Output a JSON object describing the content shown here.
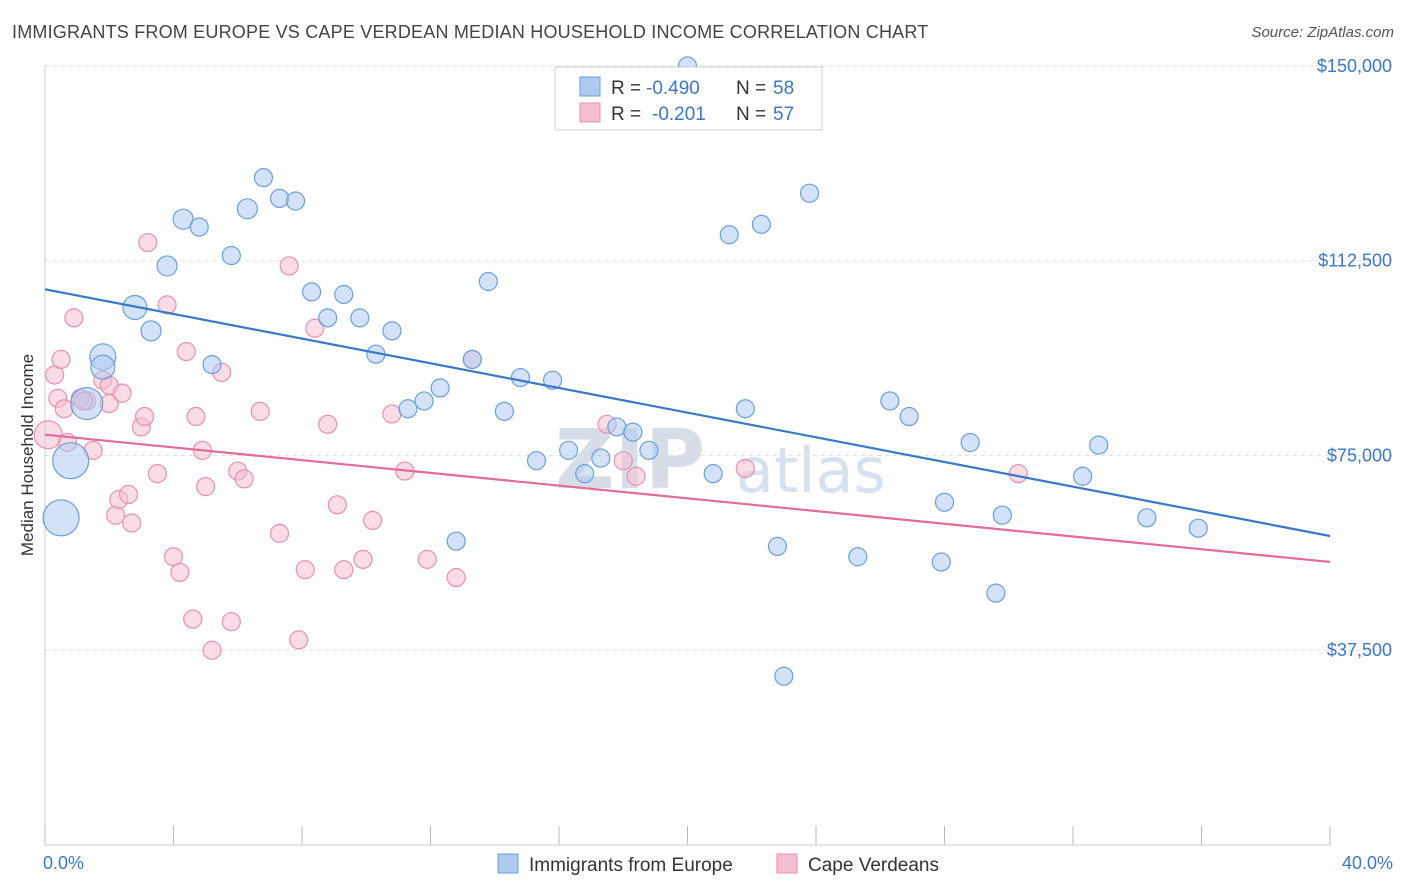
{
  "title": "IMMIGRANTS FROM EUROPE VS CAPE VERDEAN MEDIAN HOUSEHOLD INCOME CORRELATION CHART",
  "source": "Source: ZipAtlas.com",
  "watermark": {
    "zip": "ZIP",
    "atlas": "atlas"
  },
  "colors": {
    "blue": "#3b78c8",
    "blue_fill": "#aecbef",
    "pink": "#e36b97",
    "pink_fill": "#f5bfd2"
  },
  "legend_top": [
    {
      "r_label": "R =",
      "r_value": "-0.490",
      "n_label": "N =",
      "n_value": "58"
    },
    {
      "r_label": "R =",
      "r_value": "-0.201",
      "n_label": "N =",
      "n_value": "57"
    }
  ],
  "chart_data": {
    "type": "scatter",
    "title": "IMMIGRANTS FROM EUROPE VS CAPE VERDEAN MEDIAN HOUSEHOLD INCOME CORRELATION CHART",
    "xlabel": "",
    "ylabel": "Median Household Income",
    "xlim": [
      0,
      40
    ],
    "ylim": [
      0,
      155000
    ],
    "x_tick_labels": [
      "0.0%",
      "40.0%"
    ],
    "y_ticks": [
      37500,
      75000,
      112500,
      150000
    ],
    "y_tick_labels": [
      "$37,500",
      "$75,000",
      "$112,500",
      "$150,000"
    ],
    "grid": true,
    "legend_position": "top-center",
    "series": [
      {
        "name": "Immigrants from Europe",
        "color": "#3b78c8",
        "trend": {
          "x": [
            0,
            40
          ],
          "y": [
            107000,
            59500
          ]
        },
        "points": [
          [
            0.5,
            63000,
            18
          ],
          [
            0.8,
            74000,
            18
          ],
          [
            1.3,
            85000,
            16
          ],
          [
            1.8,
            94000,
            13
          ],
          [
            1.8,
            92000,
            12
          ],
          [
            2.8,
            103500,
            12
          ],
          [
            3.3,
            99000,
            10
          ],
          [
            3.8,
            111500,
            10
          ],
          [
            4.3,
            120500,
            10
          ],
          [
            4.8,
            119000,
            9
          ],
          [
            5.2,
            92500,
            9
          ],
          [
            5.8,
            113500,
            9
          ],
          [
            6.3,
            122500,
            10
          ],
          [
            6.8,
            128500,
            9
          ],
          [
            7.3,
            124500,
            9
          ],
          [
            7.8,
            124000,
            9
          ],
          [
            8.3,
            106500,
            9
          ],
          [
            8.8,
            101500,
            9
          ],
          [
            9.3,
            106000,
            9
          ],
          [
            9.8,
            101500,
            9
          ],
          [
            10.3,
            94500,
            9
          ],
          [
            10.8,
            99000,
            9
          ],
          [
            11.3,
            84000,
            9
          ],
          [
            11.8,
            85500,
            9
          ],
          [
            12.3,
            88000,
            9
          ],
          [
            12.8,
            58500,
            9
          ],
          [
            13.3,
            93500,
            9
          ],
          [
            13.8,
            108500,
            9
          ],
          [
            14.3,
            83500,
            9
          ],
          [
            14.8,
            90000,
            9
          ],
          [
            15.3,
            74000,
            9
          ],
          [
            15.8,
            89500,
            9
          ],
          [
            16.3,
            76000,
            9
          ],
          [
            16.8,
            71500,
            9
          ],
          [
            17.3,
            74500,
            9
          ],
          [
            17.8,
            80500,
            9
          ],
          [
            18.3,
            79500,
            9
          ],
          [
            18.8,
            76000,
            9
          ],
          [
            20.8,
            71500,
            9
          ],
          [
            21.3,
            117500,
            9
          ],
          [
            21.8,
            84000,
            9
          ],
          [
            22.3,
            119500,
            9
          ],
          [
            22.8,
            57500,
            9
          ],
          [
            23.0,
            32500,
            9
          ],
          [
            23.8,
            125500,
            9
          ],
          [
            25.3,
            55500,
            9
          ],
          [
            26.3,
            85500,
            9
          ],
          [
            26.9,
            82500,
            9
          ],
          [
            27.9,
            54500,
            9
          ],
          [
            28.0,
            66000,
            9
          ],
          [
            28.8,
            77500,
            9
          ],
          [
            29.6,
            48500,
            9
          ],
          [
            29.8,
            63500,
            9
          ],
          [
            32.3,
            71000,
            9
          ],
          [
            32.8,
            77000,
            9
          ],
          [
            34.3,
            63000,
            9
          ],
          [
            35.9,
            61000,
            9
          ],
          [
            20.0,
            150000,
            9
          ]
        ]
      },
      {
        "name": "Cape Verdeans",
        "color": "#e36b97",
        "trend": {
          "x": [
            0,
            40
          ],
          "y": [
            79000,
            54500
          ]
        },
        "points": [
          [
            0.1,
            79000,
            14
          ],
          [
            0.3,
            90500,
            9
          ],
          [
            0.4,
            86000,
            9
          ],
          [
            0.5,
            93500,
            9
          ],
          [
            0.6,
            84000,
            9
          ],
          [
            0.7,
            77500,
            9
          ],
          [
            0.9,
            101500,
            9
          ],
          [
            1.1,
            86000,
            9
          ],
          [
            1.3,
            85500,
            9
          ],
          [
            1.5,
            76000,
            9
          ],
          [
            1.8,
            89500,
            9
          ],
          [
            2.0,
            88500,
            9
          ],
          [
            2.0,
            85000,
            9
          ],
          [
            2.2,
            63500,
            9
          ],
          [
            2.3,
            66500,
            9
          ],
          [
            2.4,
            87000,
            9
          ],
          [
            2.6,
            67500,
            9
          ],
          [
            2.7,
            62000,
            9
          ],
          [
            3.0,
            80500,
            9
          ],
          [
            3.1,
            82500,
            9
          ],
          [
            3.2,
            116000,
            9
          ],
          [
            3.5,
            71500,
            9
          ],
          [
            3.8,
            104000,
            9
          ],
          [
            4.0,
            55500,
            9
          ],
          [
            4.2,
            52500,
            9
          ],
          [
            4.4,
            95000,
            9
          ],
          [
            4.6,
            43500,
            9
          ],
          [
            4.7,
            82500,
            9
          ],
          [
            4.9,
            76000,
            9
          ],
          [
            5.0,
            69000,
            9
          ],
          [
            5.2,
            37500,
            9
          ],
          [
            5.5,
            91000,
            9
          ],
          [
            5.8,
            43000,
            9
          ],
          [
            6.0,
            72000,
            9
          ],
          [
            6.2,
            70500,
            9
          ],
          [
            6.7,
            83500,
            9
          ],
          [
            7.3,
            60000,
            9
          ],
          [
            7.6,
            111500,
            9
          ],
          [
            7.9,
            39500,
            9
          ],
          [
            8.1,
            53000,
            9
          ],
          [
            8.4,
            99500,
            9
          ],
          [
            8.8,
            81000,
            9
          ],
          [
            9.1,
            65500,
            9
          ],
          [
            9.3,
            53000,
            9
          ],
          [
            9.9,
            55000,
            9
          ],
          [
            10.2,
            62500,
            9
          ],
          [
            10.8,
            83000,
            9
          ],
          [
            11.2,
            72000,
            9
          ],
          [
            11.9,
            55000,
            9
          ],
          [
            12.8,
            51500,
            9
          ],
          [
            13.3,
            93500,
            9
          ],
          [
            17.5,
            81000,
            9
          ],
          [
            18.0,
            74000,
            9
          ],
          [
            18.4,
            71000,
            9
          ],
          [
            21.8,
            72500,
            9
          ],
          [
            30.3,
            71500,
            9
          ],
          [
            1.2,
            85500,
            9
          ]
        ]
      }
    ]
  }
}
